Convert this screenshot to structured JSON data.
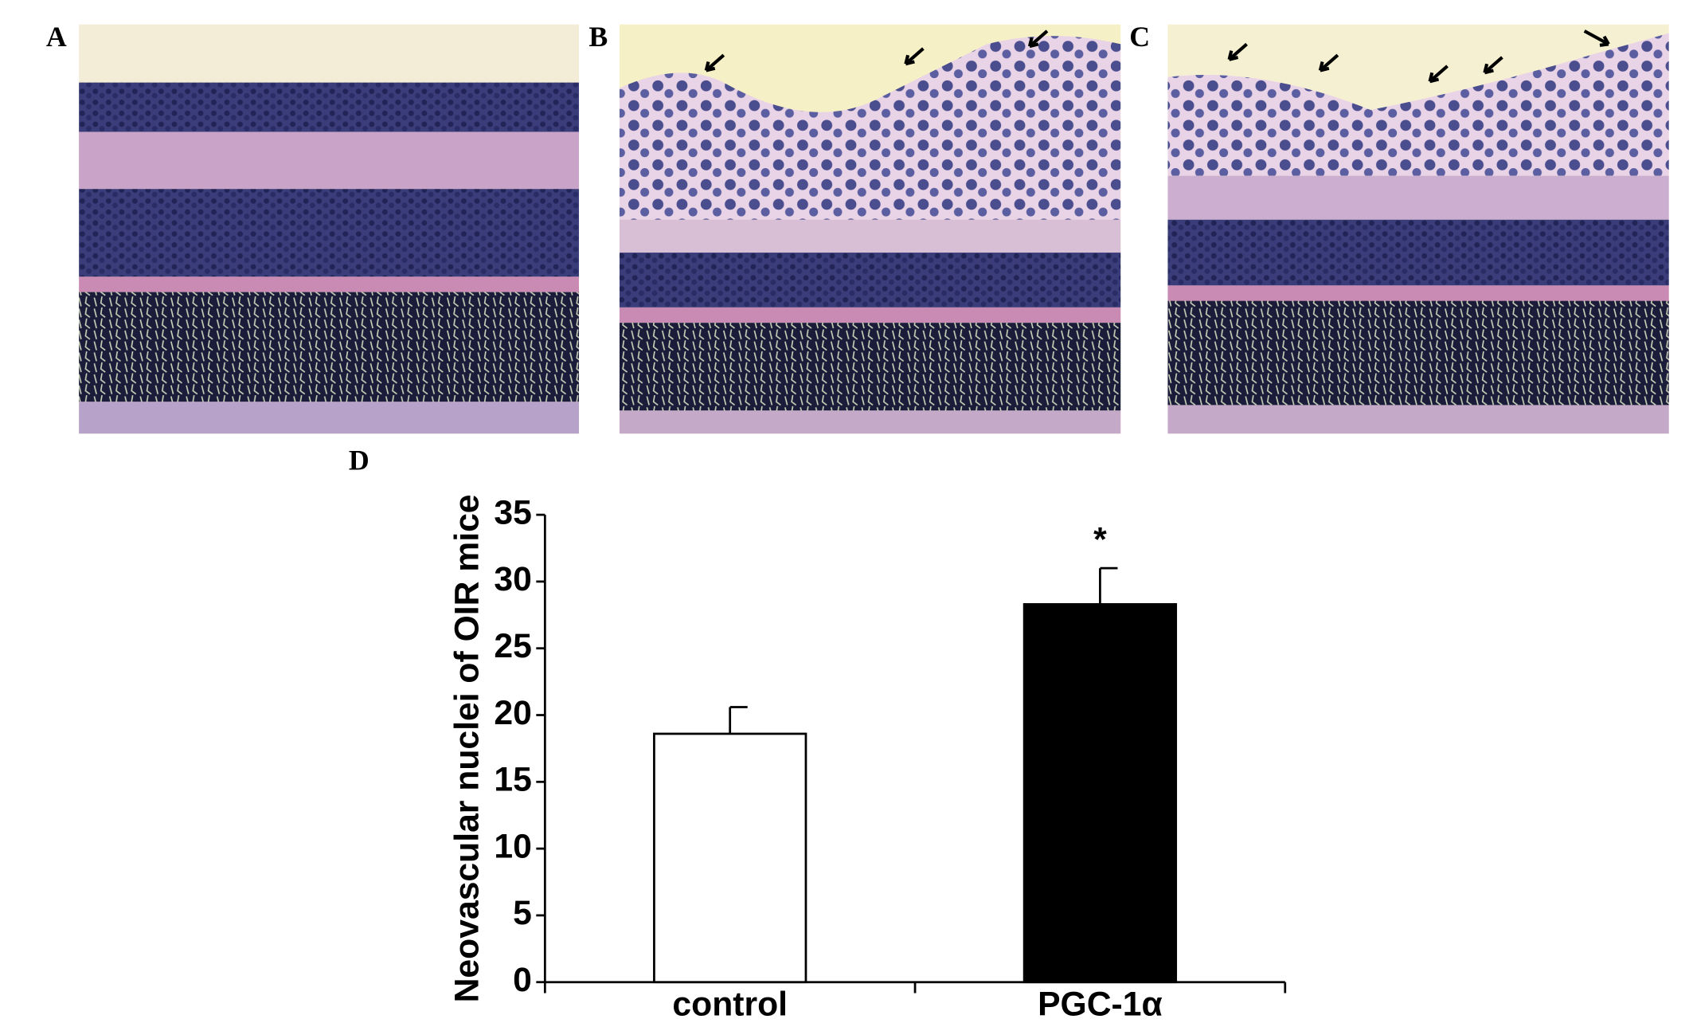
{
  "panels": [
    "A",
    "B",
    "C",
    "D"
  ],
  "chart_data": {
    "type": "bar",
    "y_label": "Neovascular nuclei of OIR mice",
    "categories": [
      "control",
      "PGC-1α"
    ],
    "values": [
      18.6,
      28.3
    ],
    "errors": [
      2.0,
      2.7
    ],
    "colors": [
      "#ffffff",
      "#000000"
    ],
    "annotation": "*",
    "ylim": [
      0,
      35
    ],
    "yticks": [
      0,
      5,
      10,
      15,
      20,
      25,
      30,
      35
    ]
  }
}
